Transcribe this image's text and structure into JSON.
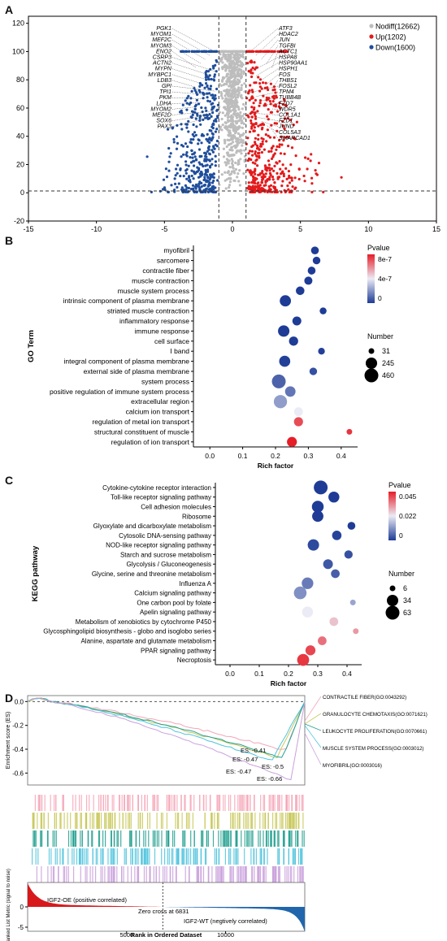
{
  "panels": {
    "a": {
      "letter": "A"
    },
    "b": {
      "letter": "B"
    },
    "c": {
      "letter": "C"
    },
    "d": {
      "letter": "D"
    }
  },
  "chart_data": [
    {
      "type": "scatter",
      "panel": "A",
      "xlim": [
        -15,
        15
      ],
      "ylim": [
        -20,
        125
      ],
      "xticks": [
        -15,
        -10,
        -5,
        0,
        5,
        10,
        15
      ],
      "yticks": [
        -20,
        0,
        20,
        40,
        60,
        80,
        100,
        120
      ],
      "thresholds": {
        "x": [
          -1,
          1
        ],
        "y": 1.3
      },
      "series": [
        {
          "name": "Nodiff",
          "count_label": "(12662)",
          "color": "#bdbdbd"
        },
        {
          "name": "Up",
          "count_label": "(1202)",
          "color": "#e31a1c"
        },
        {
          "name": "Down",
          "count_label": "(1600)",
          "color": "#1f4e9c"
        }
      ],
      "down_labels": [
        "PGK1",
        "MYOM1",
        "MEF2C",
        "MYOM3",
        "ENO2",
        "CSRP3",
        "ACTN2",
        "MYPN",
        "MYBPC1",
        "LDB3",
        "GPI",
        "TPI1",
        "PKM",
        "LDHA",
        "MYOM2",
        "MEF2D",
        "SOX6",
        "PAX3"
      ],
      "up_labels": [
        "ATF3",
        "HDAC2",
        "JUN",
        "TGFBI",
        "ACTC1",
        "HSPA8",
        "HSP90AA1",
        "HSPH1",
        "FOS",
        "THBS1",
        "FOSL2",
        "TPM4",
        "TUBB4B",
        "FZD7",
        "WDR5",
        "COL1A1",
        "FZD1",
        "JUND",
        "COL5A3",
        "SMARCAD1"
      ]
    },
    {
      "type": "scatter",
      "panel": "B",
      "ylabel": "GO Term",
      "xlabel": "Rich factor",
      "xlim": [
        -0.05,
        0.45
      ],
      "xticks": [
        0.0,
        0.1,
        0.2,
        0.3,
        0.4
      ],
      "colorbar": {
        "title": "Pvalue",
        "ticks": [
          "8e-7",
          "4e-7",
          "0"
        ],
        "range": [
          0,
          9e-07
        ]
      },
      "size_legend": {
        "title": "Number",
        "values": [
          31,
          245,
          460
        ]
      },
      "terms": [
        {
          "name": "myofibril",
          "x": 0.32,
          "pvalue": 0.0,
          "number": 60
        },
        {
          "name": "sarcomere",
          "x": 0.325,
          "pvalue": 0.0,
          "number": 55
        },
        {
          "name": "contractile fiber",
          "x": 0.31,
          "pvalue": 0.0,
          "number": 62
        },
        {
          "name": "muscle contraction",
          "x": 0.3,
          "pvalue": 0.0,
          "number": 70
        },
        {
          "name": "muscle system process",
          "x": 0.275,
          "pvalue": 0.0,
          "number": 85
        },
        {
          "name": "intrinsic component of plasma membrane",
          "x": 0.23,
          "pvalue": 0.0,
          "number": 230
        },
        {
          "name": "striated muscle contraction",
          "x": 0.345,
          "pvalue": 0.0,
          "number": 40
        },
        {
          "name": "inflammatory response",
          "x": 0.265,
          "pvalue": 0.0,
          "number": 100
        },
        {
          "name": "immune response",
          "x": 0.225,
          "pvalue": 0.0,
          "number": 245
        },
        {
          "name": "cell surface",
          "x": 0.255,
          "pvalue": 0.0,
          "number": 110
        },
        {
          "name": "I band",
          "x": 0.34,
          "pvalue": 1e-08,
          "number": 38
        },
        {
          "name": "integral component of plasma membrane",
          "x": 0.228,
          "pvalue": 1e-08,
          "number": 220
        },
        {
          "name": "external side of plasma membrane",
          "x": 0.315,
          "pvalue": 5e-08,
          "number": 55
        },
        {
          "name": "system process",
          "x": 0.21,
          "pvalue": 1e-07,
          "number": 460
        },
        {
          "name": "positive regulation of immune system process",
          "x": 0.245,
          "pvalue": 1.5e-07,
          "number": 180
        },
        {
          "name": "extracellular region",
          "x": 0.215,
          "pvalue": 2.5e-07,
          "number": 400
        },
        {
          "name": "calcium ion transport",
          "x": 0.27,
          "pvalue": 4.5e-07,
          "number": 95
        },
        {
          "name": "regulation of metal ion transport",
          "x": 0.27,
          "pvalue": 8e-07,
          "number": 105
        },
        {
          "name": "structural constituent of muscle",
          "x": 0.425,
          "pvalue": 8.5e-07,
          "number": 31
        },
        {
          "name": "regulation of ion transport",
          "x": 0.25,
          "pvalue": 9e-07,
          "number": 150
        }
      ]
    },
    {
      "type": "scatter",
      "panel": "C",
      "ylabel": "KEGG pathway",
      "xlabel": "Rich factor",
      "xlim": [
        -0.05,
        0.45
      ],
      "xticks": [
        0.0,
        0.1,
        0.2,
        0.3,
        0.4
      ],
      "colorbar": {
        "title": "Pvalue",
        "ticks": [
          "0.045",
          "0.022",
          "0"
        ],
        "range": [
          0,
          0.05
        ]
      },
      "size_legend": {
        "title": "Number",
        "values": [
          6,
          34,
          63
        ]
      },
      "terms": [
        {
          "name": "Cytokine-cytokine receptor interaction",
          "x": 0.31,
          "pvalue": 0.0,
          "number": 63
        },
        {
          "name": "Toll-like receptor signaling pathway",
          "x": 0.355,
          "pvalue": 0.0,
          "number": 30
        },
        {
          "name": "Cell adhesion molecules",
          "x": 0.3,
          "pvalue": 0.0,
          "number": 38
        },
        {
          "name": "Ribosome",
          "x": 0.3,
          "pvalue": 0.0,
          "number": 33
        },
        {
          "name": "Glyoxylate and dicarboxylate metabolism",
          "x": 0.415,
          "pvalue": 0.0,
          "number": 10
        },
        {
          "name": "Cytosolic DNA-sensing pathway",
          "x": 0.365,
          "pvalue": 0.001,
          "number": 18
        },
        {
          "name": "NOD-like receptor signaling pathway",
          "x": 0.285,
          "pvalue": 0.002,
          "number": 34
        },
        {
          "name": "Starch and sucrose metabolism",
          "x": 0.405,
          "pvalue": 0.003,
          "number": 12
        },
        {
          "name": "Glycolysis / Gluconeogenesis",
          "x": 0.335,
          "pvalue": 0.004,
          "number": 20
        },
        {
          "name": "Glycine, serine and threonine metabolism",
          "x": 0.36,
          "pvalue": 0.005,
          "number": 14
        },
        {
          "name": "Influenza A",
          "x": 0.265,
          "pvalue": 0.009,
          "number": 36
        },
        {
          "name": "Calcium signaling pathway",
          "x": 0.24,
          "pvalue": 0.012,
          "number": 48
        },
        {
          "name": "One carbon pool by folate",
          "x": 0.42,
          "pvalue": 0.015,
          "number": 6
        },
        {
          "name": "Apelin signaling pathway",
          "x": 0.265,
          "pvalue": 0.025,
          "number": 30
        },
        {
          "name": "Metabolism of xenobiotics by cytochrome P450",
          "x": 0.355,
          "pvalue": 0.03,
          "number": 14
        },
        {
          "name": "Glycosphingolipid biosynthesis - globo and isoglobo series",
          "x": 0.43,
          "pvalue": 0.035,
          "number": 6
        },
        {
          "name": "Alanine, aspartate and glutamate metabolism",
          "x": 0.315,
          "pvalue": 0.04,
          "number": 14
        },
        {
          "name": "PPAR signaling pathway",
          "x": 0.275,
          "pvalue": 0.045,
          "number": 22
        },
        {
          "name": "Necroptosis",
          "x": 0.25,
          "pvalue": 0.047,
          "number": 40
        }
      ]
    },
    {
      "type": "line",
      "panel": "D",
      "ylabel": "Enrichment score (ES)",
      "yticks": [
        0.0,
        -0.2,
        -0.4,
        -0.6
      ],
      "ylim": [
        -0.7,
        0.05
      ],
      "series": [
        {
          "name": "CONTRACTILE FIBER(GO:0043292)",
          "color": "#f4a6b7",
          "es": -0.41
        },
        {
          "name": "GRANULOCYTE CHEMOTAXIS(GO:0071621)",
          "color": "#c8c85a",
          "es": -0.47
        },
        {
          "name": "LEUKOCYTE PROLIFERATION(GO:0070661)",
          "color": "#22a08f",
          "es": -0.47
        },
        {
          "name": "MUSCLE SYSTEM PROCESS(GO:0003012)",
          "color": "#4fc3dd",
          "es": -0.5
        },
        {
          "name": "MYOFIBRIL(GO:0003016)",
          "color": "#c9a0dc",
          "es": -0.66
        }
      ],
      "es_labels": [
        "ES: -0.41",
        "ES: -0.47",
        "ES: -0.5",
        "ES: -0.47",
        "ES: -0.66"
      ],
      "metric": {
        "ylabel": "Ranked List Metric (signal to noise)",
        "xlabel": "Rank in Ordered Dataset",
        "xticks": [
          5000,
          10000
        ],
        "yticks": [
          0,
          -5
        ],
        "n": 14000,
        "zero_cross": 6831,
        "zero_cross_label": "Zero cross at 6831",
        "pos_label": "IGF2-OE (positive correlated)",
        "neg_label": "IGF2-WT (negtively correlated)"
      }
    }
  ],
  "legend_a": {
    "nodiff": "Nodiff(12662)",
    "up": "Up(1202)",
    "down": "Down(1600)"
  }
}
